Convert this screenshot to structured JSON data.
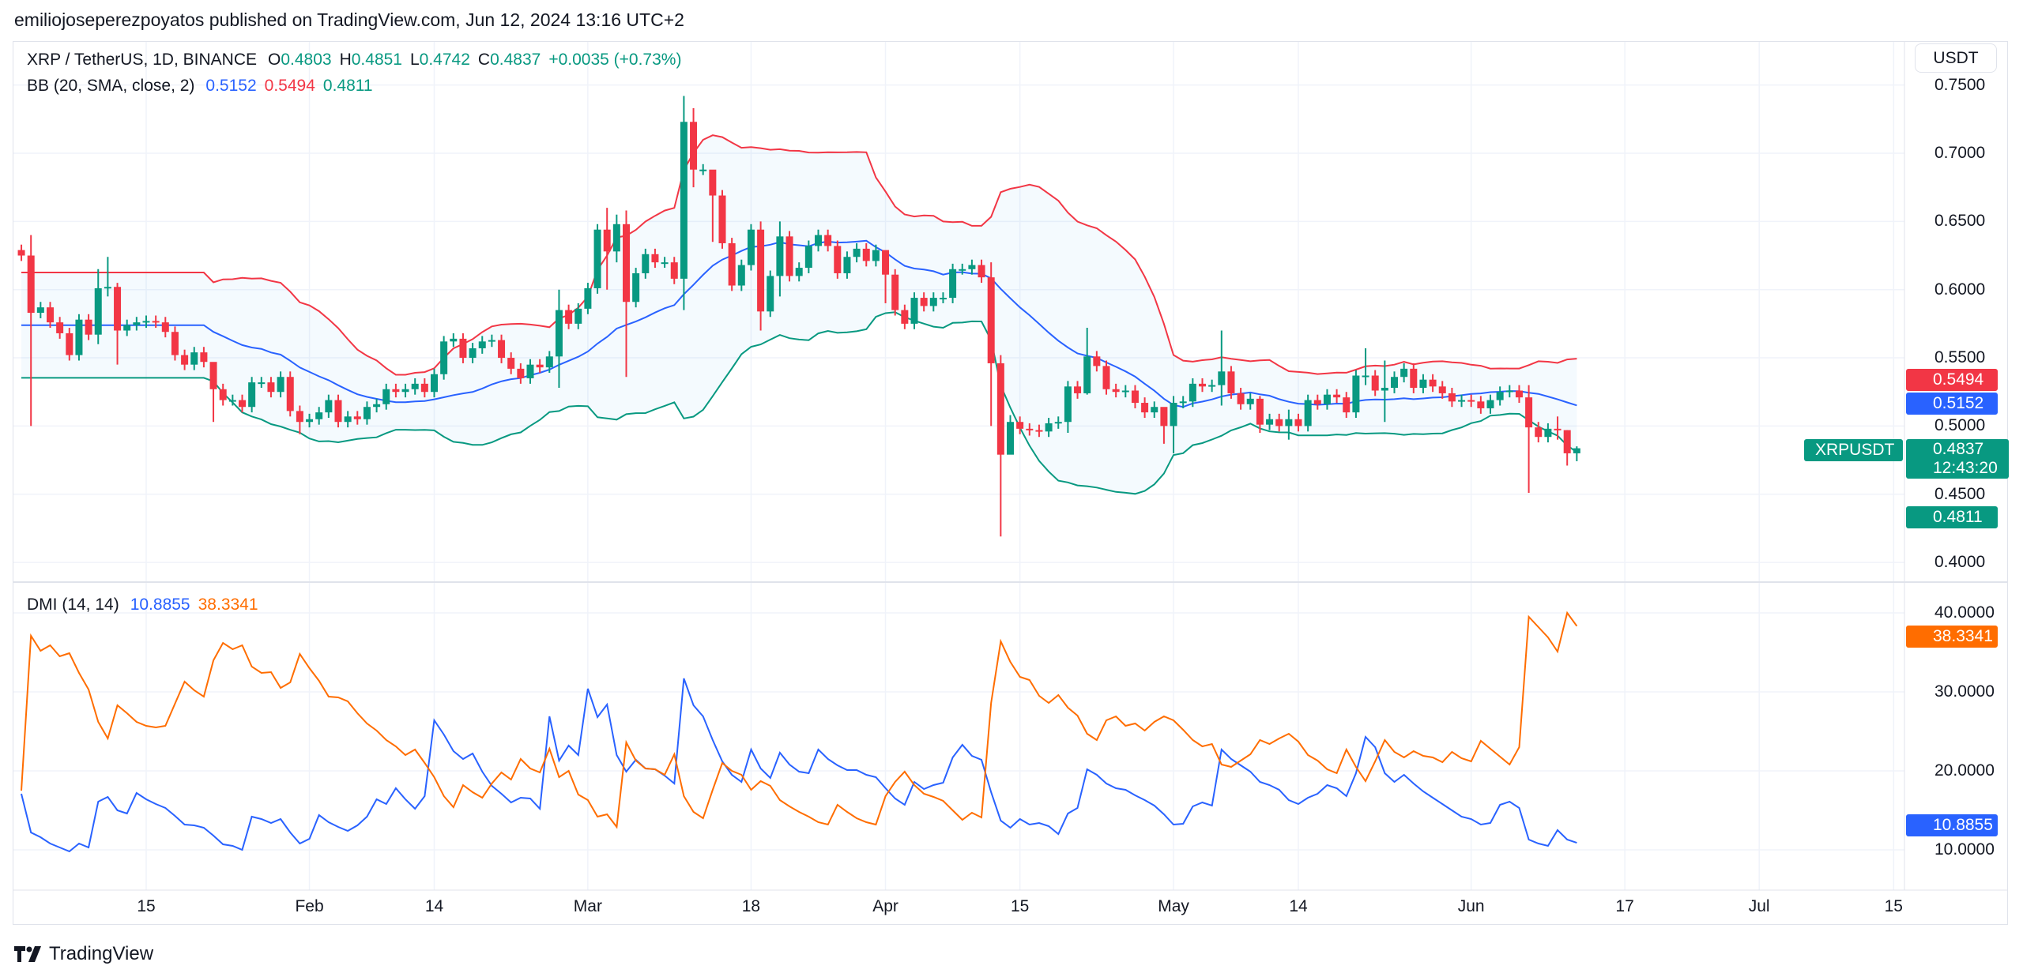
{
  "header": {
    "published": "emiliojoseperezpoyatos published on TradingView.com, Jun 12, 2024 13:16 UTC+2"
  },
  "legend": {
    "symbol": "XRP / TetherUS, 1D, BINANCE",
    "o_label": "O",
    "o": "0.4803",
    "h_label": "H",
    "h": "0.4851",
    "l_label": "L",
    "l": "0.4742",
    "c_label": "C",
    "c": "0.4837",
    "change": "+0.0035 (+0.73%)"
  },
  "bb": {
    "label": "BB (20, SMA, close, 2)",
    "basis": "0.5152",
    "upper": "0.5494",
    "lower": "0.4811"
  },
  "dmi": {
    "label": "DMI (14, 14)",
    "plus_di": "10.8855",
    "minus_di": "38.3341"
  },
  "price_axis": {
    "currency": "USDT",
    "symbol_badge": "XRPUSDT",
    "last_price": "0.4837",
    "countdown": "12:43:20",
    "upper_badge": "0.5494",
    "basis_badge": "0.5152",
    "lower_badge": "0.4811"
  },
  "dmi_axis": {
    "minus_badge": "38.3341",
    "plus_badge": "10.8855"
  },
  "footer": {
    "brand": "TradingView"
  },
  "colors": {
    "up": "#089981",
    "down": "#F23645",
    "bb_basis": "#2962FF",
    "bb_upper": "#F23645",
    "bb_lower": "#089981",
    "plus_di": "#2962FF",
    "minus_di": "#FF6D00",
    "grid": "#F0F3FA"
  },
  "chart_data": {
    "type": "candlestick",
    "start_date": "2024-01-02",
    "interval": "1D",
    "first_open": 0.629,
    "close": [
      0.625,
      0.583,
      0.587,
      0.576,
      0.568,
      0.552,
      0.578,
      0.567,
      0.601,
      0.602,
      0.57,
      0.574,
      0.576,
      0.577,
      0.576,
      0.569,
      0.552,
      0.545,
      0.554,
      0.547,
      0.527,
      0.519,
      0.519,
      0.514,
      0.532,
      0.532,
      0.525,
      0.536,
      0.511,
      0.503,
      0.505,
      0.51,
      0.519,
      0.503,
      0.507,
      0.505,
      0.514,
      0.516,
      0.527,
      0.525,
      0.527,
      0.531,
      0.525,
      0.538,
      0.562,
      0.564,
      0.55,
      0.557,
      0.562,
      0.563,
      0.55,
      0.542,
      0.535,
      0.545,
      0.543,
      0.551,
      0.585,
      0.575,
      0.586,
      0.601,
      0.644,
      0.628,
      0.648,
      0.591,
      0.612,
      0.626,
      0.62,
      0.62,
      0.608,
      0.723,
      0.688,
      0.688,
      0.669,
      0.634,
      0.603,
      0.618,
      0.644,
      0.584,
      0.61,
      0.639,
      0.61,
      0.616,
      0.632,
      0.64,
      0.632,
      0.612,
      0.624,
      0.63,
      0.621,
      0.629,
      0.611,
      0.585,
      0.575,
      0.594,
      0.588,
      0.594,
      0.594,
      0.615,
      0.615,
      0.618,
      0.609,
      0.546,
      0.479,
      0.503,
      0.498,
      0.497,
      0.496,
      0.502,
      0.503,
      0.529,
      0.524,
      0.551,
      0.544,
      0.527,
      0.525,
      0.526,
      0.517,
      0.51,
      0.514,
      0.5,
      0.517,
      0.518,
      0.531,
      0.529,
      0.53,
      0.54,
      0.524,
      0.516,
      0.52,
      0.501,
      0.505,
      0.5,
      0.505,
      0.5,
      0.519,
      0.516,
      0.523,
      0.521,
      0.51,
      0.537,
      0.537,
      0.526,
      0.528,
      0.536,
      0.542,
      0.528,
      0.534,
      0.529,
      0.524,
      0.518,
      0.519,
      0.518,
      0.513,
      0.519,
      0.525,
      0.526,
      0.521,
      0.499,
      0.492,
      0.498,
      0.497,
      0.48,
      0.4837
    ],
    "wicks": [
      [
        1,
        0.64,
        0.5
      ],
      [
        8,
        0.615,
        0.56
      ],
      [
        9,
        0.624,
        0.595
      ],
      [
        10,
        0.605,
        0.545
      ],
      [
        20,
        0.533,
        0.503
      ],
      [
        29,
        0.515,
        0.494
      ],
      [
        56,
        0.6,
        0.528
      ],
      [
        61,
        0.66,
        0.6
      ],
      [
        62,
        0.655,
        0.62
      ],
      [
        63,
        0.658,
        0.536
      ],
      [
        69,
        0.742,
        0.585
      ],
      [
        70,
        0.733,
        0.675
      ],
      [
        72,
        0.68,
        0.635
      ],
      [
        77,
        0.65,
        0.57
      ],
      [
        79,
        0.65,
        0.595
      ],
      [
        90,
        0.615,
        0.59
      ],
      [
        101,
        0.62,
        0.5
      ],
      [
        102,
        0.552,
        0.419
      ],
      [
        103,
        0.508,
        0.485
      ],
      [
        109,
        0.533,
        0.495
      ],
      [
        111,
        0.572,
        0.523
      ],
      [
        119,
        0.51,
        0.487
      ],
      [
        120,
        0.522,
        0.48
      ],
      [
        125,
        0.57,
        0.515
      ],
      [
        129,
        0.522,
        0.495
      ],
      [
        132,
        0.512,
        0.49
      ],
      [
        140,
        0.557,
        0.53
      ],
      [
        142,
        0.548,
        0.503
      ],
      [
        157,
        0.53,
        0.451
      ],
      [
        160,
        0.507,
        0.49
      ],
      [
        161,
        0.497,
        0.471
      ],
      [
        162,
        0.4851,
        0.4742
      ]
    ],
    "bollinger": {
      "length": 20,
      "mult": 2
    },
    "dmi_plus": [
      17.1,
      12.2,
      11.6,
      10.8,
      10.3,
      9.8,
      10.8,
      10.3,
      16.1,
      16.7,
      15.0,
      14.6,
      17.2,
      16.4,
      15.8,
      15.3,
      14.3,
      13.2,
      13.1,
      12.8,
      11.8,
      10.7,
      10.5,
      10.0,
      14.2,
      13.9,
      13.4,
      13.9,
      12.2,
      10.8,
      11.4,
      14.4,
      13.5,
      12.9,
      12.4,
      13.1,
      14.2,
      16.4,
      15.8,
      17.8,
      16.4,
      15.2,
      16.8,
      26.4,
      24.6,
      22.5,
      21.5,
      22.2,
      19.9,
      18.1,
      17.1,
      16.0,
      16.6,
      16.5,
      15.2,
      26.9,
      21.3,
      23.2,
      22.0,
      30.4,
      26.8,
      28.4,
      22.0,
      19.9,
      21.4,
      20.3,
      20.2,
      19.4,
      18.4,
      31.7,
      28.3,
      26.9,
      23.9,
      21.2,
      19.5,
      18.6,
      22.7,
      20.3,
      19.1,
      22.3,
      20.8,
      19.9,
      19.7,
      22.7,
      21.5,
      20.7,
      20.1,
      20.1,
      19.5,
      19.2,
      17.8,
      16.5,
      15.7,
      18.6,
      17.7,
      18.2,
      18.5,
      21.7,
      23.3,
      21.9,
      21.4,
      17.3,
      13.7,
      12.8,
      13.9,
      13.2,
      13.4,
      13.0,
      12.0,
      14.6,
      15.3,
      20.2,
      19.5,
      18.4,
      17.8,
      17.6,
      16.9,
      16.3,
      15.6,
      14.5,
      13.2,
      13.3,
      15.5,
      16.0,
      15.6,
      22.7,
      21.5,
      20.7,
      19.9,
      18.6,
      18.2,
      17.6,
      16.3,
      15.8,
      16.6,
      17.1,
      18.2,
      17.8,
      16.8,
      19.7,
      24.3,
      23.0,
      19.7,
      18.6,
      19.5,
      18.4,
      17.4,
      16.6,
      15.8,
      15.0,
      14.2,
      13.9,
      13.2,
      13.4,
      15.7,
      16.1,
      15.3,
      11.3,
      10.8,
      10.5,
      12.5,
      11.3,
      10.8855
    ],
    "dmi_minus": [
      17.5,
      37.1,
      35.2,
      35.9,
      34.5,
      34.9,
      32.4,
      30.3,
      26.2,
      24.1,
      28.3,
      27.3,
      26.2,
      25.7,
      25.5,
      25.7,
      28.5,
      31.3,
      30.2,
      29.4,
      34.0,
      36.2,
      35.4,
      35.9,
      33.2,
      32.4,
      32.5,
      30.5,
      31.2,
      34.8,
      33.0,
      31.4,
      29.4,
      29.3,
      28.8,
      27.3,
      26.0,
      25.1,
      23.9,
      23.1,
      22.0,
      22.7,
      21.0,
      19.2,
      16.8,
      15.4,
      18.2,
      17.3,
      16.6,
      18.4,
      19.8,
      18.9,
      21.5,
      20.3,
      19.8,
      22.8,
      19.2,
      20.0,
      17.0,
      16.3,
      14.2,
      14.5,
      12.9,
      23.6,
      21.3,
      20.3,
      20.2,
      19.5,
      22.1,
      16.8,
      14.8,
      14.0,
      17.6,
      21.0,
      20.0,
      19.5,
      17.6,
      18.7,
      18.1,
      16.3,
      15.5,
      14.8,
      14.2,
      13.5,
      13.2,
      15.7,
      14.8,
      14.0,
      13.5,
      13.2,
      16.8,
      18.6,
      19.9,
      18.2,
      17.1,
      16.7,
      16.2,
      15.0,
      13.8,
      14.7,
      14.1,
      28.6,
      36.4,
      33.8,
      31.9,
      31.5,
      29.5,
      28.6,
      29.6,
      28.0,
      27.0,
      24.7,
      23.9,
      26.4,
      26.9,
      25.7,
      26.0,
      25.1,
      26.2,
      26.9,
      26.4,
      25.2,
      23.9,
      23.1,
      23.4,
      20.8,
      20.5,
      21.3,
      22.1,
      23.9,
      23.4,
      24.1,
      24.7,
      23.7,
      22.0,
      21.3,
      20.2,
      19.7,
      22.7,
      20.5,
      18.7,
      21.2,
      23.9,
      22.4,
      21.7,
      22.5,
      21.9,
      21.7,
      21.1,
      22.4,
      21.6,
      21.2,
      23.8,
      22.8,
      21.8,
      20.8,
      23.0,
      39.5,
      38.2,
      36.9,
      35.1,
      40.0,
      38.3341
    ],
    "price_ticks": [
      {
        "value": 0.75,
        "label": "0.7500"
      },
      {
        "value": 0.7,
        "label": "0.7000"
      },
      {
        "value": 0.65,
        "label": "0.6500"
      },
      {
        "value": 0.6,
        "label": "0.6000"
      },
      {
        "value": 0.55,
        "label": "0.5500"
      },
      {
        "value": 0.5,
        "label": "0.5000"
      },
      {
        "value": 0.45,
        "label": "0.4500"
      },
      {
        "value": 0.4,
        "label": "0.4000"
      }
    ],
    "dmi_ticks": [
      {
        "value": 40,
        "label": "40.0000"
      },
      {
        "value": 30,
        "label": "30.0000"
      },
      {
        "value": 20,
        "label": "20.0000"
      },
      {
        "value": 10,
        "label": "10.0000"
      }
    ],
    "x_ticks": [
      {
        "date": "2024-01-15",
        "label": "15"
      },
      {
        "date": "2024-02-01",
        "label": "Feb"
      },
      {
        "date": "2024-02-14",
        "label": "14"
      },
      {
        "date": "2024-03-01",
        "label": "Mar"
      },
      {
        "date": "2024-03-18",
        "label": "18"
      },
      {
        "date": "2024-04-01",
        "label": "Apr"
      },
      {
        "date": "2024-04-15",
        "label": "15"
      },
      {
        "date": "2024-05-01",
        "label": "May"
      },
      {
        "date": "2024-05-14",
        "label": "14"
      },
      {
        "date": "2024-06-01",
        "label": "Jun"
      },
      {
        "date": "2024-06-17",
        "label": "17"
      },
      {
        "date": "2024-07-01",
        "label": "Jul"
      },
      {
        "date": "2024-07-15",
        "label": "15"
      }
    ],
    "price_range": [
      0.395,
      0.75
    ],
    "dmi_range": [
      7,
      42
    ]
  }
}
